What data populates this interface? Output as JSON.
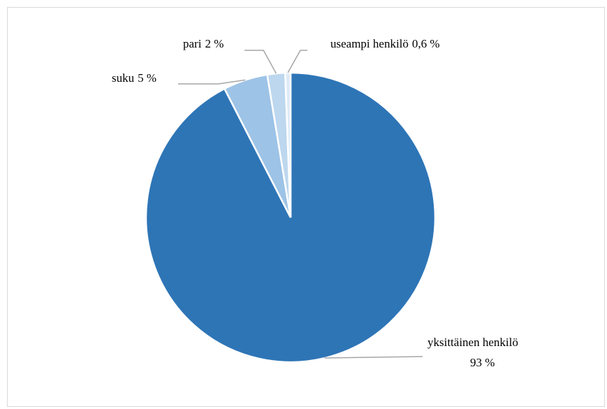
{
  "chart_data": {
    "type": "pie",
    "categories": [
      "yksittäinen henkilö",
      "suku",
      "pari",
      "useampi henkilö"
    ],
    "values": [
      93,
      5,
      2,
      0.6
    ],
    "value_labels": [
      "93 %",
      "5 %",
      "2 %",
      "0,6 %"
    ],
    "colors": [
      "#2e75b6",
      "#9dc3e6",
      "#bdd7ee",
      "#deebf7"
    ]
  }
}
